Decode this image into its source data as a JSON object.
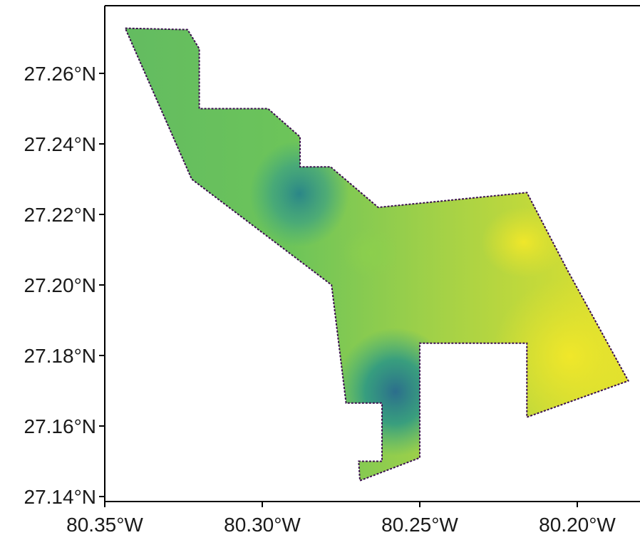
{
  "map": {
    "type": "raster-map",
    "x_axis": {
      "ticks": [
        {
          "value": -80.35,
          "label": "80.35°W"
        },
        {
          "value": -80.3,
          "label": "80.30°W"
        },
        {
          "value": -80.25,
          "label": "80.25°W"
        },
        {
          "value": -80.2,
          "label": "80.20°W"
        }
      ]
    },
    "y_axis": {
      "ticks": [
        {
          "value": 27.14,
          "label": "27.14°N"
        },
        {
          "value": 27.16,
          "label": "27.16°N"
        },
        {
          "value": 27.18,
          "label": "27.18°N"
        },
        {
          "value": 27.2,
          "label": "27.20°N"
        },
        {
          "value": 27.22,
          "label": "27.22°N"
        },
        {
          "value": 27.24,
          "label": "27.24°N"
        },
        {
          "value": 27.26,
          "label": "27.26°N"
        }
      ]
    },
    "colormap": "viridis",
    "colors": {
      "low": "#2a7a8c",
      "mid": "#5fbe5f",
      "high": "#f0e42a",
      "edge": "#3b0f4f"
    },
    "grid": false,
    "legend": "none"
  }
}
